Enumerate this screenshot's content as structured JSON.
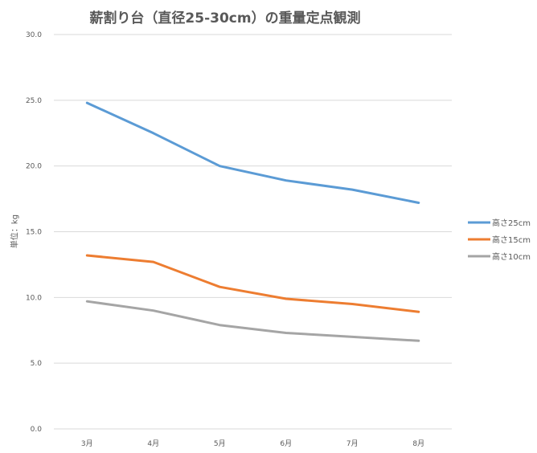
{
  "chart_data": {
    "type": "line",
    "title": "薪割り台（直径25-30cm）の重量定点観測",
    "xlabel": "",
    "ylabel": "単位：kg",
    "categories": [
      "3月",
      "4月",
      "5月",
      "6月",
      "7月",
      "8月"
    ],
    "ylim": [
      0,
      30
    ],
    "yticks": [
      "0.0",
      "5.0",
      "10.0",
      "15.0",
      "20.0",
      "25.0",
      "30.0"
    ],
    "grid": true,
    "legend_position": "right",
    "series": [
      {
        "name": "高さ25cm",
        "color": "#5b9bd5",
        "values": [
          24.8,
          22.5,
          20.0,
          18.9,
          18.2,
          17.2
        ]
      },
      {
        "name": "高さ15cm",
        "color": "#ed7d31",
        "values": [
          13.2,
          12.7,
          10.8,
          9.9,
          9.5,
          8.9
        ]
      },
      {
        "name": "高さ10cm",
        "color": "#a5a5a5",
        "values": [
          9.7,
          9.0,
          7.9,
          7.3,
          7.0,
          6.7
        ]
      }
    ]
  }
}
